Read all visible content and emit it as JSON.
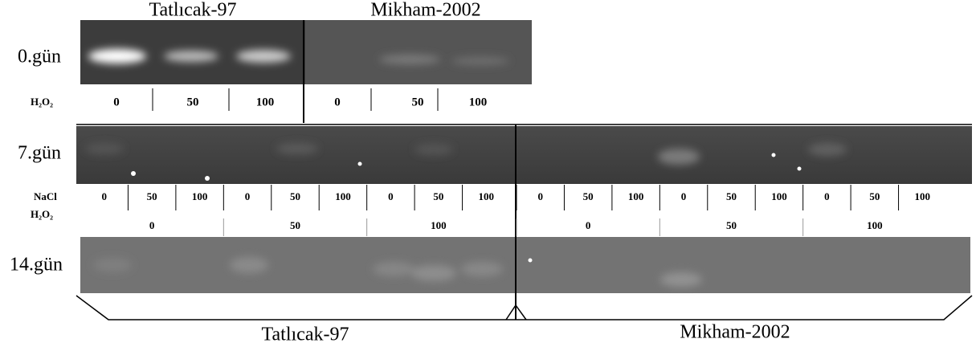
{
  "top_panel": {
    "strains": [
      "Tatlıcak-97",
      "Mikham-2002"
    ],
    "day": "0.gün",
    "row_label": "H₂O₂",
    "lanes": [
      "0",
      "50",
      "100",
      "0",
      "50",
      "100"
    ]
  },
  "middle_panel": {
    "day": "7.gün",
    "nacl_label": "NaCl",
    "h2o2_label": "H₂O₂",
    "nacl_lanes": [
      "0",
      "50",
      "100",
      "0",
      "50",
      "100",
      "0",
      "50",
      "100",
      "0",
      "50",
      "100",
      "0",
      "50",
      "100",
      "0",
      "50",
      "100"
    ],
    "h2o2_groups": [
      "0",
      "50",
      "100",
      "0",
      "50",
      "100"
    ]
  },
  "bottom_panel": {
    "day": "14.gün",
    "strains": [
      "Tatlıcak-97",
      "Mikham-2002"
    ]
  }
}
